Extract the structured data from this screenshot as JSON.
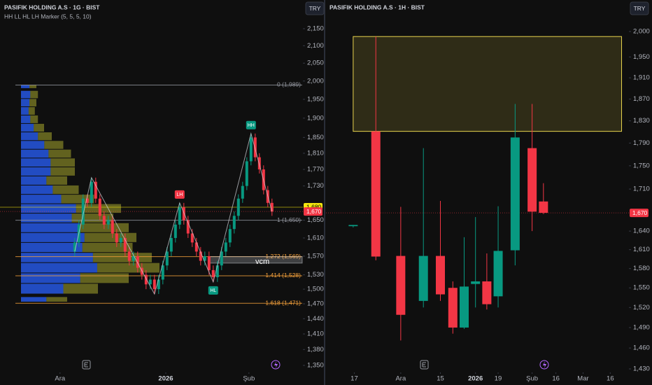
{
  "chart_data": [
    {
      "type": "candlestick",
      "title": "PASIFIK HOLDING A.S · 1G · BIST",
      "subtitle": "HH LL HL LH Marker (5, 5, 5, 10)",
      "currency": "TRY",
      "log_scale": true,
      "up_color": "#089981",
      "down_color": "#f23645",
      "ylim": [
        1350,
        2150
      ],
      "yticks": [
        {
          "value": 2150,
          "label": "2,150"
        },
        {
          "value": 2100,
          "label": "2,100"
        },
        {
          "value": 2050,
          "label": "2,050"
        },
        {
          "value": 2000,
          "label": "2,000"
        },
        {
          "value": 1950,
          "label": "1,950"
        },
        {
          "value": 1900,
          "label": "1,900"
        },
        {
          "value": 1850,
          "label": "1,850"
        },
        {
          "value": 1810,
          "label": "1,810"
        },
        {
          "value": 1770,
          "label": "1,770"
        },
        {
          "value": 1730,
          "label": "1,730"
        },
        {
          "value": 1650,
          "label": "1,650"
        },
        {
          "value": 1610,
          "label": "1,610"
        },
        {
          "value": 1570,
          "label": "1,570"
        },
        {
          "value": 1530,
          "label": "1,530"
        },
        {
          "value": 1500,
          "label": "1,500"
        },
        {
          "value": 1470,
          "label": "1,470"
        },
        {
          "value": 1440,
          "label": "1,440"
        },
        {
          "value": 1410,
          "label": "1,410"
        },
        {
          "value": 1380,
          "label": "1,380"
        },
        {
          "value": 1350,
          "label": "1,350"
        }
      ],
      "xlim": [
        -17.8,
        54.2
      ],
      "xticks": [
        {
          "value": -3.5,
          "label": "Ara"
        },
        {
          "value": 21.7,
          "label": "2026"
        },
        {
          "value": 41.5,
          "label": "Şub"
        }
      ],
      "open": [
        1580,
        1600,
        1640,
        1700,
        1690,
        1740,
        1700,
        1660,
        1640,
        1650,
        1620,
        1600,
        1610,
        1580,
        1560,
        1570,
        1545,
        1530,
        1510,
        1520,
        1500,
        1520,
        1550,
        1580,
        1610,
        1640,
        1680,
        1650,
        1620,
        1600,
        1580,
        1560,
        1570,
        1540,
        1525,
        1550,
        1580,
        1600,
        1630,
        1660,
        1700,
        1730,
        1790,
        1850,
        1800,
        1770,
        1720,
        1690
      ],
      "high": [
        1610,
        1650,
        1710,
        1710,
        1750,
        1750,
        1710,
        1670,
        1660,
        1660,
        1630,
        1620,
        1620,
        1590,
        1580,
        1580,
        1555,
        1540,
        1530,
        1530,
        1530,
        1560,
        1590,
        1620,
        1650,
        1690,
        1690,
        1660,
        1630,
        1610,
        1590,
        1580,
        1580,
        1550,
        1560,
        1590,
        1610,
        1640,
        1670,
        1710,
        1740,
        1800,
        1860,
        1860,
        1810,
        1780,
        1730,
        1700
      ],
      "low": [
        1570,
        1590,
        1630,
        1680,
        1680,
        1690,
        1650,
        1630,
        1630,
        1610,
        1590,
        1590,
        1570,
        1550,
        1550,
        1535,
        1520,
        1500,
        1500,
        1490,
        1490,
        1510,
        1540,
        1570,
        1600,
        1630,
        1640,
        1610,
        1590,
        1570,
        1550,
        1550,
        1530,
        1515,
        1515,
        1540,
        1570,
        1590,
        1620,
        1650,
        1690,
        1720,
        1780,
        1790,
        1760,
        1710,
        1680,
        1660
      ],
      "close": [
        1600,
        1640,
        1700,
        1690,
        1740,
        1700,
        1660,
        1640,
        1650,
        1620,
        1600,
        1610,
        1580,
        1560,
        1570,
        1545,
        1530,
        1510,
        1520,
        1500,
        1520,
        1550,
        1580,
        1610,
        1640,
        1680,
        1650,
        1620,
        1600,
        1580,
        1560,
        1570,
        1540,
        1525,
        1550,
        1580,
        1600,
        1630,
        1660,
        1700,
        1730,
        1790,
        1850,
        1800,
        1770,
        1720,
        1690,
        1670
      ],
      "volume_profile": {
        "levels": [
          1985,
          1963,
          1941,
          1919,
          1897,
          1875,
          1853,
          1831,
          1809,
          1787,
          1765,
          1743,
          1721,
          1699,
          1677,
          1655,
          1633,
          1611,
          1589,
          1567,
          1545,
          1523,
          1501,
          1479
        ],
        "values": [
          20,
          22,
          20,
          18,
          22,
          30,
          40,
          55,
          65,
          70,
          70,
          60,
          75,
          95,
          130,
          120,
          140,
          150,
          145,
          170,
          180,
          140,
          100,
          60
        ]
      },
      "levels": [
        {
          "value": 1989,
          "label": "0 (1,989)",
          "color": "#9598a1"
        },
        {
          "value": 1650,
          "label": "1 (1,650)",
          "color": "#9598a1"
        },
        {
          "value": 1569,
          "label": "1.272 (1,569)",
          "color": "#f7a23b"
        },
        {
          "value": 1528,
          "label": "1.414 (1,528)",
          "color": "#f7a23b"
        },
        {
          "value": 1471,
          "label": "1.618 (1,471)",
          "color": "#f7a23b"
        }
      ],
      "vcm": {
        "label": "vcm",
        "values": [
          1555,
          1569
        ]
      },
      "zigzag": {
        "x": [
          0,
          4,
          19,
          25,
          33,
          42,
          47
        ],
        "values": [
          1580,
          1750,
          1490,
          1690,
          1515,
          1860,
          1670
        ]
      },
      "pivots": [
        {
          "label": "LH",
          "x": 25,
          "value": 1690,
          "color": "#f23645",
          "position": "above"
        },
        {
          "label": "HL",
          "x": 33,
          "value": 1515,
          "color": "#089981",
          "position": "below"
        },
        {
          "label": "HH",
          "x": 42,
          "value": 1860,
          "color": "#089981",
          "position": "above"
        }
      ],
      "price_labels": [
        {
          "value": 1680,
          "label": "1,680",
          "color": "#f5e60f"
        },
        {
          "value": 1670,
          "label": "1,670",
          "color": "#f23645"
        }
      ]
    },
    {
      "type": "candlestick",
      "title": "PASIFIK HOLDING A.S · 1H · BIST",
      "currency": "TRY",
      "log_scale": true,
      "up_color": "#089981",
      "down_color": "#f23645",
      "ylim": [
        1430,
        2000
      ],
      "yticks": [
        {
          "value": 2000,
          "label": "2,000"
        },
        {
          "value": 1950,
          "label": "1,950"
        },
        {
          "value": 1910,
          "label": "1,910"
        },
        {
          "value": 1870,
          "label": "1,870"
        },
        {
          "value": 1830,
          "label": "1,830"
        },
        {
          "value": 1790,
          "label": "1,790"
        },
        {
          "value": 1750,
          "label": "1,750"
        },
        {
          "value": 1710,
          "label": "1,710"
        },
        {
          "value": 1640,
          "label": "1,640"
        },
        {
          "value": 1610,
          "label": "1,610"
        },
        {
          "value": 1580,
          "label": "1,580"
        },
        {
          "value": 1550,
          "label": "1,550"
        },
        {
          "value": 1520,
          "label": "1,520"
        },
        {
          "value": 1490,
          "label": "1,490"
        },
        {
          "value": 1460,
          "label": "1,460"
        },
        {
          "value": 1430,
          "label": "1,430"
        }
      ],
      "xlim": [
        -2.4,
        24.1
      ],
      "xticks": [
        {
          "value": 0.1,
          "label": "17"
        },
        {
          "value": 4.2,
          "label": "Ara"
        },
        {
          "value": 7.7,
          "label": "15"
        },
        {
          "value": 10.8,
          "label": "2026"
        },
        {
          "value": 12.8,
          "label": "19"
        },
        {
          "value": 15.8,
          "label": "Şub"
        },
        {
          "value": 17.9,
          "label": "16"
        },
        {
          "value": 20.3,
          "label": "Mar"
        },
        {
          "value": 22.7,
          "label": "16"
        }
      ],
      "x": [
        0,
        2,
        4.2,
        6.2,
        7.7,
        8.8,
        9.8,
        10.8,
        11.8,
        12.8,
        14.3,
        15.8,
        16.8
      ],
      "open": [
        1648,
        1811,
        1600,
        1530,
        1600,
        1550,
        1490,
        1556,
        1560,
        1537,
        1609,
        1781,
        1689
      ],
      "high": [
        1650,
        1990,
        1680,
        1781,
        1690,
        1560,
        1630,
        1663,
        1604,
        1681,
        1861,
        1861,
        1720
      ],
      "low": [
        1646,
        1593,
        1471,
        1520,
        1530,
        1481,
        1488,
        1520,
        1517,
        1520,
        1585,
        1640,
        1668
      ],
      "close": [
        1650,
        1599,
        1509,
        1600,
        1540,
        1490,
        1552,
        1560,
        1525,
        1608,
        1800,
        1672,
        1670
      ],
      "zone": {
        "x": [
          0,
          23.7
        ],
        "values": [
          1811,
          1990
        ],
        "color": "#e8d44d"
      },
      "price_labels": [
        {
          "value": 1670,
          "label": "1,670",
          "color": "#f23645"
        }
      ]
    }
  ]
}
